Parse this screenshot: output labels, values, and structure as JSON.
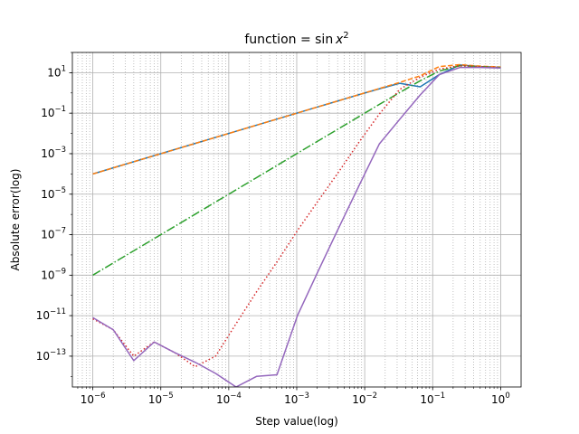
{
  "chart_data": {
    "type": "line",
    "title": "function = sin x²",
    "title_parts": {
      "prefix": "function = sin",
      "var": "x",
      "exp": "2"
    },
    "xlabel": "Step value(log)",
    "ylabel": "Absolute error(log)",
    "xscale": "log",
    "yscale": "log",
    "xlim": [
      5e-07,
      2
    ],
    "ylim": [
      3e-15,
      100
    ],
    "grid": {
      "major": true,
      "minor_x": true,
      "minor_style": "dotted"
    },
    "x_ticks": [
      {
        "value": 1e-06,
        "base": "10",
        "exp": "−6"
      },
      {
        "value": 1e-05,
        "base": "10",
        "exp": "−5"
      },
      {
        "value": 0.0001,
        "base": "10",
        "exp": "−4"
      },
      {
        "value": 0.001,
        "base": "10",
        "exp": "−3"
      },
      {
        "value": 0.01,
        "base": "10",
        "exp": "−2"
      },
      {
        "value": 0.1,
        "base": "10",
        "exp": "−1"
      },
      {
        "value": 1,
        "base": "10",
        "exp": "0"
      }
    ],
    "y_ticks": [
      {
        "value": 10,
        "base": "10",
        "exp": "1"
      },
      {
        "value": 0.1,
        "base": "10",
        "exp": "−1"
      },
      {
        "value": 0.001,
        "base": "10",
        "exp": "−3"
      },
      {
        "value": 1e-05,
        "base": "10",
        "exp": "−5"
      },
      {
        "value": 1e-07,
        "base": "10",
        "exp": "−7"
      },
      {
        "value": 1e-09,
        "base": "10",
        "exp": "−9"
      },
      {
        "value": 1e-11,
        "base": "10",
        "exp": "−11"
      },
      {
        "value": 1e-13,
        "base": "10",
        "exp": "−13"
      }
    ],
    "series": [
      {
        "color": "#1f77b4",
        "dash": "solid",
        "x": [
          1e-06,
          2e-06,
          4e-06,
          8e-06,
          1.6e-05,
          3.2e-05,
          6.4e-05,
          0.000128,
          0.000256,
          0.000512,
          0.001024,
          0.002048,
          0.004096,
          0.008192,
          0.016384,
          0.032768,
          0.065536,
          0.125,
          0.25,
          0.5,
          1
        ],
        "y": [
          0.0001,
          0.0002,
          0.0004,
          0.0008,
          0.0016,
          0.0032,
          0.0064,
          0.0128,
          0.0256,
          0.0512,
          0.1024,
          0.2048,
          0.4096,
          0.82,
          1.6,
          3.0,
          2.0,
          8.0,
          24,
          20,
          18
        ]
      },
      {
        "color": "#ff7f0e",
        "dash": "dashed",
        "x": [
          1e-06,
          2e-06,
          4e-06,
          8e-06,
          1.6e-05,
          3.2e-05,
          6.4e-05,
          0.000128,
          0.000256,
          0.000512,
          0.001024,
          0.002048,
          0.004096,
          0.008192,
          0.016384,
          0.032768,
          0.065536,
          0.125,
          0.25,
          0.5,
          1
        ],
        "y": [
          0.0001,
          0.0002,
          0.0004,
          0.0008,
          0.0016,
          0.0032,
          0.0064,
          0.0128,
          0.0256,
          0.0512,
          0.1024,
          0.2048,
          0.4096,
          0.82,
          1.65,
          3.3,
          7.0,
          20,
          25,
          21,
          19
        ]
      },
      {
        "color": "#2ca02c",
        "dash": "dashdot",
        "x": [
          1e-06,
          2e-06,
          4e-06,
          8e-06,
          1.6e-05,
          3.2e-05,
          6.4e-05,
          0.000128,
          0.000256,
          0.000512,
          0.001024,
          0.002048,
          0.004096,
          0.008192,
          0.016384,
          0.032768,
          0.065536,
          0.125,
          0.25,
          0.5,
          1
        ],
        "y": [
          1e-09,
          4e-09,
          1.6e-08,
          6.4e-08,
          2.56e-07,
          1.02e-06,
          4.1e-06,
          1.64e-05,
          6.55e-05,
          0.000262,
          0.00105,
          0.0042,
          0.0168,
          0.067,
          0.27,
          1.05,
          4.0,
          12,
          22,
          20,
          18
        ]
      },
      {
        "color": "#d62728",
        "dash": "dotted",
        "x": [
          1e-06,
          2e-06,
          4e-06,
          8e-06,
          1.6e-05,
          3.2e-05,
          6.4e-05,
          0.000128,
          0.000256,
          0.000512,
          0.001024,
          0.002048,
          0.004096,
          0.008192,
          0.016384,
          0.032768,
          0.065536,
          0.125,
          0.25,
          0.5,
          1
        ],
        "y": [
          7e-12,
          2e-12,
          1e-13,
          5e-13,
          1.5e-13,
          3e-14,
          1e-13,
          4e-12,
          1.5e-10,
          4.5e-09,
          1.6e-07,
          4.5e-06,
          0.00012,
          0.0036,
          0.09,
          1.5,
          6,
          15,
          22,
          20,
          18
        ]
      },
      {
        "color": "#9467bd",
        "dash": "solid",
        "x": [
          1e-06,
          2e-06,
          4e-06,
          8e-06,
          1.6e-05,
          3.2e-05,
          6.4e-05,
          0.000128,
          0.000256,
          0.000512,
          0.001024,
          0.002048,
          0.004096,
          0.008192,
          0.016384,
          0.032768,
          0.065536,
          0.125,
          0.25,
          0.5,
          1
        ],
        "y": [
          8e-12,
          2e-12,
          6e-14,
          5e-13,
          1.5e-13,
          5e-14,
          1.4e-14,
          3e-15,
          1e-14,
          1.2e-14,
          1e-11,
          1.5e-09,
          2e-07,
          2.5e-05,
          0.003,
          0.05,
          0.8,
          8,
          18,
          18,
          17
        ]
      }
    ]
  }
}
